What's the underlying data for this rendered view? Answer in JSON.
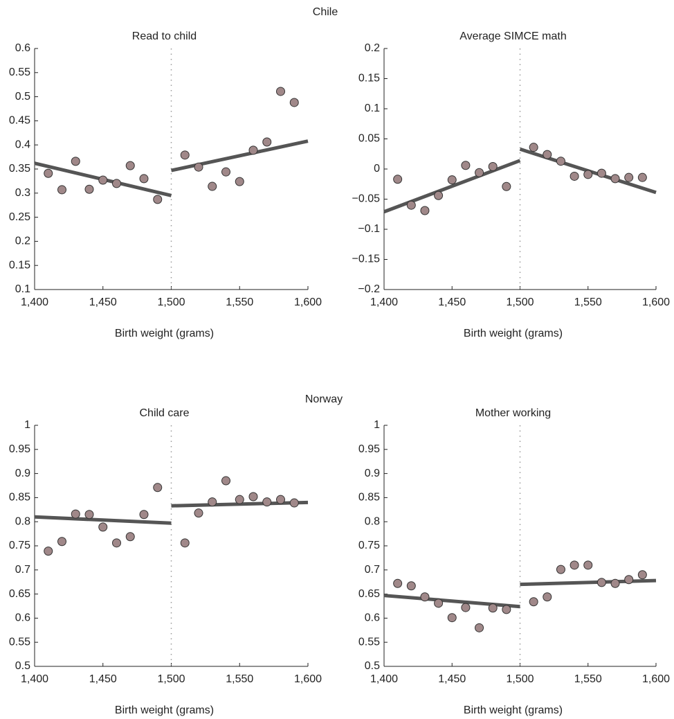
{
  "group_titles": [
    "Chile",
    "Norway"
  ],
  "chart_data": [
    {
      "type": "scatter",
      "title": "Read to child",
      "xlabel": "Birth weight (grams)",
      "x": [
        1410,
        1420,
        1430,
        1440,
        1450,
        1460,
        1470,
        1480,
        1490,
        1510,
        1520,
        1530,
        1540,
        1550,
        1560,
        1570,
        1580,
        1590
      ],
      "values": [
        0.341,
        0.307,
        0.366,
        0.308,
        0.327,
        0.32,
        0.357,
        0.33,
        0.287,
        0.379,
        0.354,
        0.314,
        0.344,
        0.324,
        0.389,
        0.406,
        0.511,
        0.488
      ],
      "point_color": "#a08889",
      "line_color": "#555555",
      "fit_lines": [
        {
          "x": [
            1400,
            1500
          ],
          "values": [
            0.362,
            0.295
          ]
        },
        {
          "x": [
            1500,
            1600
          ],
          "values": [
            0.347,
            0.408
          ]
        }
      ],
      "cutoff": 1500,
      "xlim": [
        1400,
        1600
      ],
      "xticks": [
        {
          "value": 1400,
          "label": "1,400"
        },
        {
          "value": 1450,
          "label": "1,450"
        },
        {
          "value": 1500,
          "label": "1,500"
        },
        {
          "value": 1550,
          "label": "1,550"
        },
        {
          "value": 1600,
          "label": "1,600"
        }
      ],
      "ylim": [
        0.1,
        0.6
      ],
      "yticks": [
        0.1,
        0.15,
        0.2,
        0.25,
        0.3,
        0.35,
        0.4,
        0.45,
        0.5,
        0.55,
        0.6
      ]
    },
    {
      "type": "scatter",
      "title": "Average SIMCE math",
      "xlabel": "Birth weight (grams)",
      "x": [
        1410,
        1420,
        1430,
        1440,
        1450,
        1460,
        1470,
        1480,
        1490,
        1510,
        1520,
        1530,
        1540,
        1550,
        1560,
        1570,
        1580,
        1590
      ],
      "values": [
        -0.017,
        -0.06,
        -0.069,
        -0.044,
        -0.018,
        0.006,
        -0.006,
        0.004,
        -0.029,
        0.036,
        0.024,
        0.013,
        -0.012,
        -0.009,
        -0.007,
        -0.016,
        -0.014,
        -0.014
      ],
      "point_color": "#a08889",
      "line_color": "#555555",
      "fit_lines": [
        {
          "x": [
            1400,
            1500
          ],
          "values": [
            -0.071,
            0.014
          ]
        },
        {
          "x": [
            1500,
            1600
          ],
          "values": [
            0.033,
            -0.039
          ]
        }
      ],
      "cutoff": 1500,
      "xlim": [
        1400,
        1600
      ],
      "xticks": [
        {
          "value": 1400,
          "label": "1,400"
        },
        {
          "value": 1450,
          "label": "1,450"
        },
        {
          "value": 1500,
          "label": "1,500"
        },
        {
          "value": 1550,
          "label": "1,550"
        },
        {
          "value": 1600,
          "label": "1,600"
        }
      ],
      "ylim": [
        -0.2,
        0.2
      ],
      "yticks": [
        {
          "value": -0.2,
          "label": "−0.2"
        },
        {
          "value": -0.15,
          "label": "−0.15"
        },
        {
          "value": -0.1,
          "label": "−0.1"
        },
        {
          "value": -0.05,
          "label": "−0.05"
        },
        0,
        0.05,
        0.1,
        0.15,
        0.2
      ]
    },
    {
      "type": "scatter",
      "title": "Child care",
      "xlabel": "Birth weight (grams)",
      "x": [
        1410,
        1420,
        1430,
        1440,
        1450,
        1460,
        1470,
        1480,
        1490,
        1510,
        1520,
        1530,
        1540,
        1550,
        1560,
        1570,
        1580,
        1590
      ],
      "values": [
        0.739,
        0.759,
        0.816,
        0.815,
        0.789,
        0.756,
        0.769,
        0.815,
        0.871,
        0.756,
        0.818,
        0.841,
        0.885,
        0.846,
        0.852,
        0.841,
        0.846,
        0.839
      ],
      "point_color": "#a08889",
      "line_color": "#555555",
      "fit_lines": [
        {
          "x": [
            1400,
            1500
          ],
          "values": [
            0.81,
            0.797
          ]
        },
        {
          "x": [
            1500,
            1600
          ],
          "values": [
            0.833,
            0.84
          ]
        }
      ],
      "cutoff": 1500,
      "xlim": [
        1400,
        1600
      ],
      "xticks": [
        {
          "value": 1400,
          "label": "1,400"
        },
        {
          "value": 1450,
          "label": "1,450"
        },
        {
          "value": 1500,
          "label": "1,500"
        },
        {
          "value": 1550,
          "label": "1,550"
        },
        {
          "value": 1600,
          "label": "1,600"
        }
      ],
      "ylim": [
        0.5,
        1
      ],
      "yticks": [
        0.5,
        0.55,
        0.6,
        0.65,
        0.7,
        0.75,
        0.8,
        0.85,
        0.9,
        0.95,
        1
      ]
    },
    {
      "type": "scatter",
      "title": "Mother working",
      "xlabel": "Birth weight (grams)",
      "x": [
        1410,
        1420,
        1430,
        1440,
        1450,
        1460,
        1470,
        1480,
        1490,
        1510,
        1520,
        1530,
        1540,
        1550,
        1560,
        1570,
        1580,
        1590
      ],
      "values": [
        0.672,
        0.667,
        0.644,
        0.631,
        0.601,
        0.622,
        0.58,
        0.621,
        0.618,
        0.634,
        0.644,
        0.701,
        0.71,
        0.71,
        0.674,
        0.672,
        0.68,
        0.69
      ],
      "point_color": "#a08889",
      "line_color": "#555555",
      "fit_lines": [
        {
          "x": [
            1400,
            1500
          ],
          "values": [
            0.647,
            0.624
          ]
        },
        {
          "x": [
            1500,
            1600
          ],
          "values": [
            0.67,
            0.678
          ]
        }
      ],
      "cutoff": 1500,
      "xlim": [
        1400,
        1600
      ],
      "xticks": [
        {
          "value": 1400,
          "label": "1,400"
        },
        {
          "value": 1450,
          "label": "1,450"
        },
        {
          "value": 1500,
          "label": "1,500"
        },
        {
          "value": 1550,
          "label": "1,550"
        },
        {
          "value": 1600,
          "label": "1,600"
        }
      ],
      "ylim": [
        0.5,
        1
      ],
      "yticks": [
        0.5,
        0.55,
        0.6,
        0.65,
        0.7,
        0.75,
        0.8,
        0.85,
        0.9,
        0.95,
        1
      ]
    }
  ]
}
